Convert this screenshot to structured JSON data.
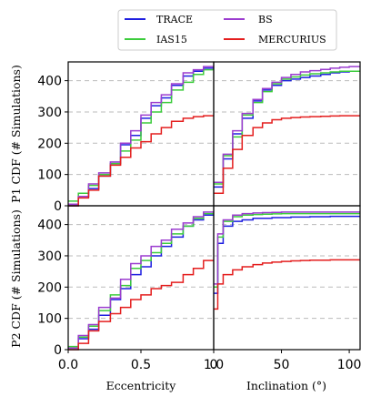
{
  "colors": {
    "TRACE": "#1f1fe0",
    "IAS15": "#3ccc3c",
    "BS": "#9b3ccf",
    "MERCURIUS": "#e41e1e"
  },
  "legend": {
    "entries": [
      "TRACE",
      "IAS15",
      "BS",
      "MERCURIUS"
    ],
    "placement": "top-center, above plot grid, 2 columns"
  },
  "labels": {
    "ylabel_top": "P1 CDF (# Simulations)",
    "ylabel_bottom": "P2 CDF (# Simulations)",
    "xlabel_left": "Eccentricity",
    "xlabel_right": "Inclination (°)"
  },
  "chart_data": [
    {
      "panel": "P1 Eccentricity",
      "type": "line",
      "step": true,
      "x": [
        0.0,
        0.07,
        0.14,
        0.21,
        0.29,
        0.36,
        0.43,
        0.5,
        0.57,
        0.64,
        0.71,
        0.79,
        0.86,
        0.93,
        1.0
      ],
      "series": [
        {
          "name": "TRACE",
          "values": [
            0,
            30,
            55,
            95,
            135,
            195,
            225,
            280,
            320,
            345,
            385,
            415,
            430,
            440,
            440
          ]
        },
        {
          "name": "IAS15",
          "values": [
            15,
            40,
            65,
            100,
            135,
            175,
            210,
            265,
            300,
            330,
            370,
            395,
            420,
            435,
            435
          ]
        },
        {
          "name": "BS",
          "values": [
            5,
            30,
            70,
            105,
            140,
            200,
            240,
            290,
            330,
            355,
            390,
            425,
            435,
            445,
            445
          ]
        },
        {
          "name": "MERCURIUS",
          "values": [
            0,
            25,
            50,
            95,
            130,
            155,
            185,
            205,
            230,
            250,
            270,
            280,
            285,
            288,
            288
          ]
        }
      ],
      "xlim": [
        0,
        1
      ],
      "ylim": [
        0,
        460
      ],
      "xticks": [],
      "yticks": [
        0,
        100,
        200,
        300,
        400
      ],
      "grid": "horizontal dashed"
    },
    {
      "panel": "P1 Inclination",
      "type": "line",
      "step": true,
      "x": [
        0,
        7,
        14,
        21,
        29,
        36,
        43,
        50,
        57,
        64,
        71,
        79,
        86,
        93,
        100,
        108
      ],
      "series": [
        {
          "name": "TRACE",
          "values": [
            60,
            150,
            230,
            280,
            335,
            370,
            385,
            400,
            405,
            410,
            415,
            420,
            425,
            428,
            430,
            430
          ]
        },
        {
          "name": "IAS15",
          "values": [
            70,
            160,
            220,
            290,
            330,
            365,
            390,
            405,
            412,
            418,
            422,
            425,
            428,
            430,
            430,
            430
          ]
        },
        {
          "name": "BS",
          "values": [
            75,
            165,
            240,
            295,
            340,
            375,
            395,
            410,
            420,
            428,
            432,
            436,
            440,
            443,
            445,
            445
          ]
        },
        {
          "name": "MERCURIUS",
          "values": [
            40,
            120,
            180,
            225,
            250,
            265,
            275,
            280,
            282,
            284,
            285,
            286,
            287,
            288,
            288,
            288
          ]
        }
      ],
      "xlim": [
        0,
        108
      ],
      "ylim": [
        0,
        460
      ],
      "xticks": [],
      "yticks": [],
      "grid": "horizontal dashed"
    },
    {
      "panel": "P2 Eccentricity",
      "type": "line",
      "step": true,
      "x": [
        0.0,
        0.07,
        0.14,
        0.21,
        0.29,
        0.36,
        0.43,
        0.5,
        0.57,
        0.64,
        0.71,
        0.79,
        0.86,
        0.93,
        1.0
      ],
      "series": [
        {
          "name": "TRACE",
          "values": [
            5,
            35,
            65,
            110,
            160,
            195,
            240,
            265,
            300,
            330,
            360,
            395,
            415,
            430,
            430
          ]
        },
        {
          "name": "IAS15",
          "values": [
            10,
            40,
            75,
            125,
            175,
            205,
            260,
            285,
            310,
            340,
            370,
            395,
            420,
            435,
            435
          ]
        },
        {
          "name": "BS",
          "values": [
            5,
            45,
            80,
            135,
            165,
            225,
            275,
            300,
            330,
            350,
            385,
            405,
            425,
            440,
            440
          ]
        },
        {
          "name": "MERCURIUS",
          "values": [
            0,
            20,
            60,
            90,
            115,
            135,
            160,
            175,
            195,
            205,
            215,
            240,
            260,
            285,
            285
          ]
        }
      ],
      "xlim": [
        0,
        1
      ],
      "ylim": [
        0,
        460
      ],
      "xticks": [
        0.0,
        0.5,
        1.0
      ],
      "yticks": [
        0,
        100,
        200,
        300,
        400
      ],
      "grid": "horizontal dashed"
    },
    {
      "panel": "P2 Inclination",
      "type": "line",
      "step": true,
      "x": [
        0,
        3,
        7,
        14,
        21,
        29,
        36,
        43,
        50,
        57,
        64,
        71,
        79,
        86,
        93,
        100,
        108
      ],
      "series": [
        {
          "name": "TRACE",
          "values": [
            180,
            340,
            395,
            410,
            415,
            420,
            420,
            422,
            422,
            424,
            424,
            425,
            425,
            426,
            426,
            426,
            426
          ]
        },
        {
          "name": "IAS15",
          "values": [
            200,
            360,
            410,
            425,
            430,
            432,
            433,
            434,
            435,
            435,
            435,
            435,
            435,
            435,
            435,
            435,
            435
          ]
        },
        {
          "name": "BS",
          "values": [
            210,
            370,
            415,
            430,
            435,
            437,
            438,
            439,
            440,
            440,
            440,
            440,
            440,
            440,
            440,
            440,
            440
          ]
        },
        {
          "name": "MERCURIUS",
          "values": [
            130,
            210,
            240,
            255,
            265,
            272,
            277,
            280,
            282,
            284,
            285,
            286,
            286,
            287,
            287,
            287,
            287
          ]
        }
      ],
      "xlim": [
        0,
        108
      ],
      "ylim": [
        0,
        460
      ],
      "xticks": [
        0,
        50,
        100
      ],
      "yticks": [],
      "grid": "horizontal dashed"
    }
  ]
}
